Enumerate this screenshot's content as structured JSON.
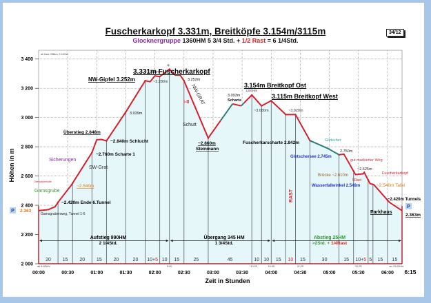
{
  "header": {
    "title": "Fuscherkarkopf 3.331m, Breitköpfe 3.154m/3115m",
    "subtitle_group": "Glocknergruppe",
    "subtitle_stats": "  1360HM  5 3/4 Std. + ",
    "subtitle_rest": "1/2 Rast",
    "subtitle_total": " = 6 1/4Std.",
    "badge": "34/12"
  },
  "chart_data": {
    "type": "area",
    "title": "Fuscherkarkopf 3.331m, Breitköpfe 3.154m/3115m",
    "subtitle": "Glocknergruppe 1360HM 5 3/4 Std. + 1/2 Rast = 6 1/4Std.",
    "xlabel": "Zeit in Stunden",
    "ylabel": "Höhen in m",
    "ylim": [
      2000,
      3460
    ],
    "xlim_minutes": [
      0,
      375
    ],
    "yticks": [
      "2 000",
      "2 200",
      "2 400",
      "2 600",
      "2 800",
      "3 000",
      "3 200",
      "3 400"
    ],
    "xticks": [
      "00:00",
      "00:30",
      "01:00",
      "01:30",
      "02:00",
      "02:30",
      "03:00",
      "03:30",
      "04:00",
      "04:30",
      "05:00",
      "05:30",
      "06:00",
      "6:15"
    ],
    "grid": true,
    "series": [
      {
        "name": "Höhenprofil",
        "points_minutes_elevation": [
          [
            0,
            2363
          ],
          [
            10,
            2370
          ],
          [
            17,
            2390
          ],
          [
            20,
            2420
          ],
          [
            34,
            2540
          ],
          [
            55,
            2760
          ],
          [
            60,
            2848
          ],
          [
            65,
            2850
          ],
          [
            70,
            2840
          ],
          [
            90,
            3039
          ],
          [
            110,
            3252
          ],
          [
            115,
            3245
          ],
          [
            120,
            3285
          ],
          [
            125,
            3280
          ],
          [
            135,
            3331
          ],
          [
            141,
            3290
          ],
          [
            146,
            3290
          ],
          [
            150,
            3252
          ],
          [
            175,
            2860
          ],
          [
            200,
            3093
          ],
          [
            209,
            3080
          ],
          [
            220,
            3154
          ],
          [
            230,
            3080
          ],
          [
            240,
            3115
          ],
          [
            255,
            3020
          ],
          [
            265,
            3020
          ],
          [
            280,
            2842
          ],
          [
            298,
            2790
          ],
          [
            310,
            2745
          ],
          [
            315,
            2750
          ],
          [
            327,
            2610
          ],
          [
            335,
            2615
          ],
          [
            336,
            2625
          ],
          [
            342,
            2548
          ],
          [
            346,
            2540
          ],
          [
            362,
            2420
          ],
          [
            375,
            2363
          ]
        ]
      }
    ],
    "segment_minutes": [
      "20",
      "15",
      "20",
      "15",
      "20",
      "20",
      "10+5",
      "10",
      "15",
      "25",
      "45",
      "10",
      "10",
      "15",
      "10",
      "15",
      "30",
      "15",
      "10+5",
      "5",
      "15",
      "15"
    ],
    "time_marks": [
      "ab 6:45Uhr",
      "9:00",
      "10:25",
      "10:45",
      "11:25",
      "12:25",
      "an 13:00Uhr"
    ],
    "stages": [
      {
        "label": "Aufstieg 990HM",
        "duration": "2 1/4Std."
      },
      {
        "label": "Übergang 345  HM",
        "duration": "1 3/4Std."
      },
      {
        "label": "Abstieg 25HM",
        "duration": ">2Std. + ",
        "rest": "1/4Rast"
      }
    ],
    "annotations": [
      "3.331m Fuscherkarkopf",
      "NW-Gipfel 3.252m",
      "~3.285m",
      "~3.280m",
      "3.252m",
      "NW-GRAT",
      "I-II",
      "Schutt",
      "3.039m",
      "Überstieg 2.848m",
      "~2.840m Schlucht",
      "~2.760m Scharte 1",
      "Sicherungen",
      "SW-Grat",
      "Oberwalderhütte",
      "~2.540m",
      "Gamsgrube",
      "~2.420m Ende 6.Tunnel",
      "Gamsgrubenweg, Tunnel 1-6",
      "2.363",
      "~2.860m",
      "Steinmann",
      "3.093m",
      "Scharte",
      "1300HM",
      "3.154m Breitkopf Ost",
      "~3.080m",
      "3.115m Breitkopf West",
      "~3.020m",
      "RAST",
      "Fuscherkarscharte 2.842m",
      "Gletscher",
      "2.750m",
      "Gletschersee 2.745m",
      "gut markierter Weg",
      "~2.625m",
      "Brücke ~2.610m",
      "5Rast",
      "Fuscherkarkopf",
      "Wasserfallwinkel 2.548m",
      "~2.540m Tafel",
      "~2.420m Tunnels",
      "Parkhaus",
      "2.363m",
      "ab Haid: 288km; 3 1/4Std."
    ]
  },
  "labels": {
    "y_axis": "Höhen in m",
    "x_axis": "Zeit in Stunden",
    "parking": "P",
    "start_elev": "2.363",
    "end_elev": "2.363m",
    "note_top": "ab Haid: 288km; 3 1/4Std.",
    "summit": "3.331m Fuscherkarkopf",
    "nw_gipfel": "NW-Gipfel 3.252m",
    "p3285": "~3.285m",
    "p3280": "~3.280m",
    "p3252": "3.252m",
    "nw_grat": "NW-GRAT",
    "grade": "I-II",
    "schutt": "Schutt",
    "p3039": "3.039m",
    "ueberstieg": "Überstieg 2.848m",
    "schlucht": "~2.840m Schlucht",
    "scharte1": "~2.760m Scharte 1",
    "sicherungen": "Sicherungen",
    "swgrat": "SW-Grat",
    "oberwalder": "Oberwalderhütte",
    "p2540": "~2.540m",
    "gamsgrube": "Gamsgrube",
    "tunnel_end": "~2.420m Ende 6.Tunnel",
    "gamsgrubenweg": "Gamsgrubenweg, Tunnel 1-6",
    "steinmann_elev": "~2.860m",
    "steinmann": "Steinmann",
    "p3093": "3.093m",
    "scharte": "Scharte",
    "hm1300": "1300HM",
    "breitkopf_ost": "3.154m Breitkopf Ost",
    "p3080": "~3.080m",
    "breitkopf_west": "3.115m Breitkopf West",
    "p3020": "~3.020m",
    "rast": "RAST",
    "fuscherkarscharte": "Fuscherkarscharte 2.842m",
    "gletscher": "Gletscher",
    "p2750": "2.750m",
    "gletschersee": "Gletschersee 2.745m",
    "gut_weg": "gut markierter Weg",
    "p2625": "~2.625m",
    "bruecke": "Brücke ~2.610m",
    "rast5": "5Rast",
    "fuscherkarkopf_sign": "Fuscherkarkopf",
    "wasserfall": "Wasserfallwinkel 2.548m",
    "tafel": "~2.540m Tafel",
    "tunnels": "~2.420m Tunnels",
    "parkhaus": "Parkhaus"
  },
  "colors": {
    "profile_up": "#d81e2a",
    "profile_glacier": "#2a7f7a",
    "fill": "#e6f7fa",
    "grid": "#888888",
    "accent_purple": "#8a2aa8",
    "accent_green": "#3a9a3a",
    "accent_orange": "#e07a10",
    "accent_blue": "#2233cc",
    "accent_brown": "#9a5a2a"
  }
}
